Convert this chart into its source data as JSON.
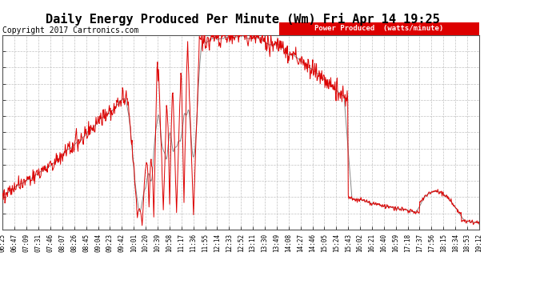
{
  "title": "Daily Energy Produced Per Minute (Wm) Fri Apr 14 19:25",
  "copyright": "Copyright 2017 Cartronics.com",
  "legend_label": "Power Produced  (watts/minute)",
  "legend_bg": "#dd0000",
  "legend_text_color": "#ffffff",
  "ymin": 0.0,
  "ymax": 61.0,
  "yticks": [
    0.0,
    5.08,
    10.17,
    15.25,
    20.33,
    25.42,
    30.5,
    35.58,
    40.67,
    45.75,
    50.83,
    55.92,
    61.0
  ],
  "background_color": "#ffffff",
  "plot_bg": "#ffffff",
  "grid_color": "#bbbbbb",
  "line_color_red": "#dd0000",
  "line_color_gray": "#888888",
  "title_fontsize": 11,
  "copyright_fontsize": 7,
  "xtick_fontsize": 5.5,
  "ytick_fontsize": 7.5,
  "x_labels": [
    "06:25",
    "06:47",
    "07:09",
    "07:31",
    "07:46",
    "08:07",
    "08:26",
    "08:45",
    "09:04",
    "09:23",
    "09:42",
    "10:01",
    "10:20",
    "10:39",
    "10:58",
    "11:17",
    "11:36",
    "11:55",
    "12:14",
    "12:33",
    "12:52",
    "13:11",
    "13:30",
    "13:49",
    "14:08",
    "14:27",
    "14:46",
    "15:05",
    "15:24",
    "15:43",
    "16:02",
    "16:21",
    "16:40",
    "16:59",
    "17:18",
    "17:37",
    "17:56",
    "18:15",
    "18:34",
    "18:53",
    "19:12"
  ]
}
